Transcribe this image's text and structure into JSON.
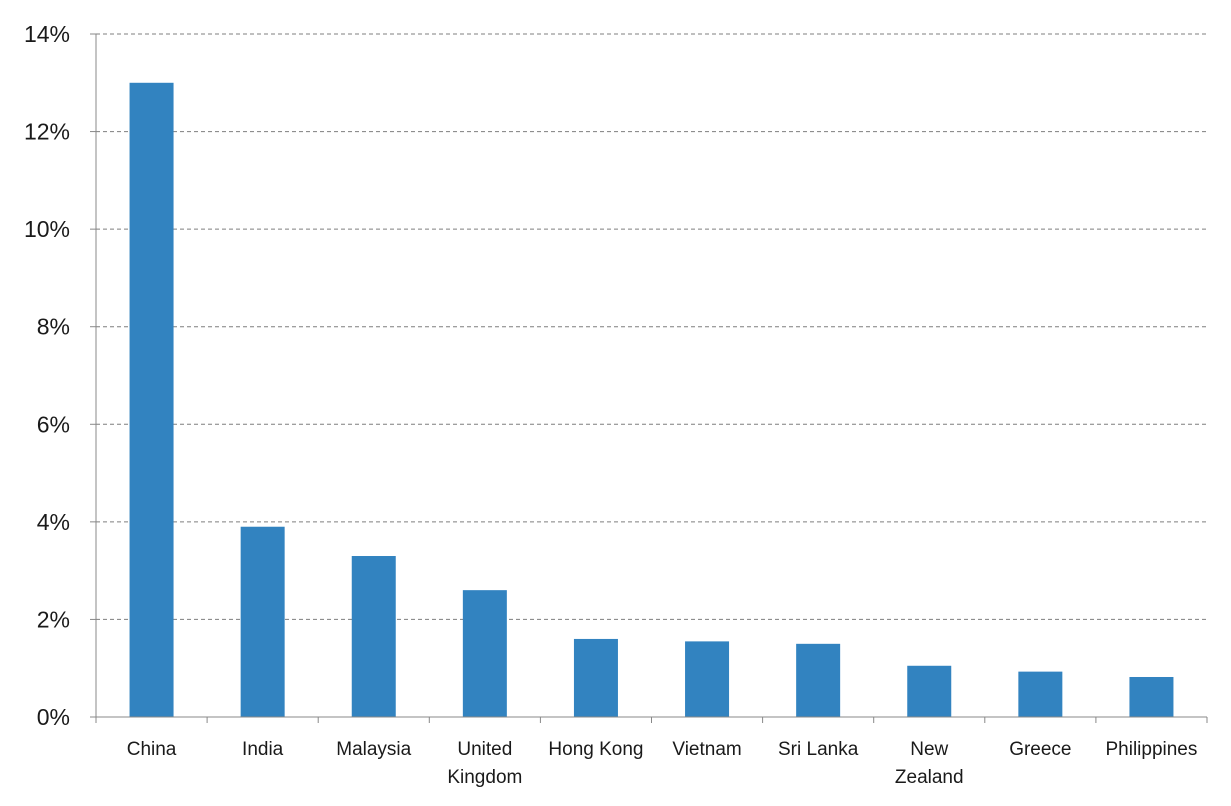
{
  "chart_data": {
    "type": "bar",
    "categories": [
      "China",
      "India",
      "Malaysia",
      "United Kingdom",
      "Hong Kong",
      "Vietnam",
      "Sri Lanka",
      "New Zealand",
      "Greece",
      "Philippines"
    ],
    "category_label_lines": [
      [
        "China"
      ],
      [
        "India"
      ],
      [
        "Malaysia"
      ],
      [
        "United",
        "Kingdom"
      ],
      [
        "Hong Kong"
      ],
      [
        "Vietnam"
      ],
      [
        "Sri Lanka"
      ],
      [
        "New",
        "Zealand"
      ],
      [
        "Greece"
      ],
      [
        "Philippines"
      ]
    ],
    "values": [
      13.0,
      3.9,
      3.3,
      2.6,
      1.6,
      1.55,
      1.5,
      1.05,
      0.93,
      0.82
    ],
    "y_unit": "%",
    "ylim": [
      0,
      14
    ],
    "yticks": [
      0,
      2,
      4,
      6,
      8,
      10,
      12,
      14
    ],
    "ytick_labels": [
      "0%",
      "2%",
      "4%",
      "6%",
      "8%",
      "10%",
      "12%",
      "14%"
    ],
    "title": "",
    "xlabel": "",
    "ylabel": "",
    "grid": true,
    "grid_style": "dashed",
    "legend": "none",
    "colors": {
      "bar": "#3283c0",
      "axis": "#888888",
      "grid": "#7f7f7f",
      "text": "#1a1a1a"
    }
  }
}
